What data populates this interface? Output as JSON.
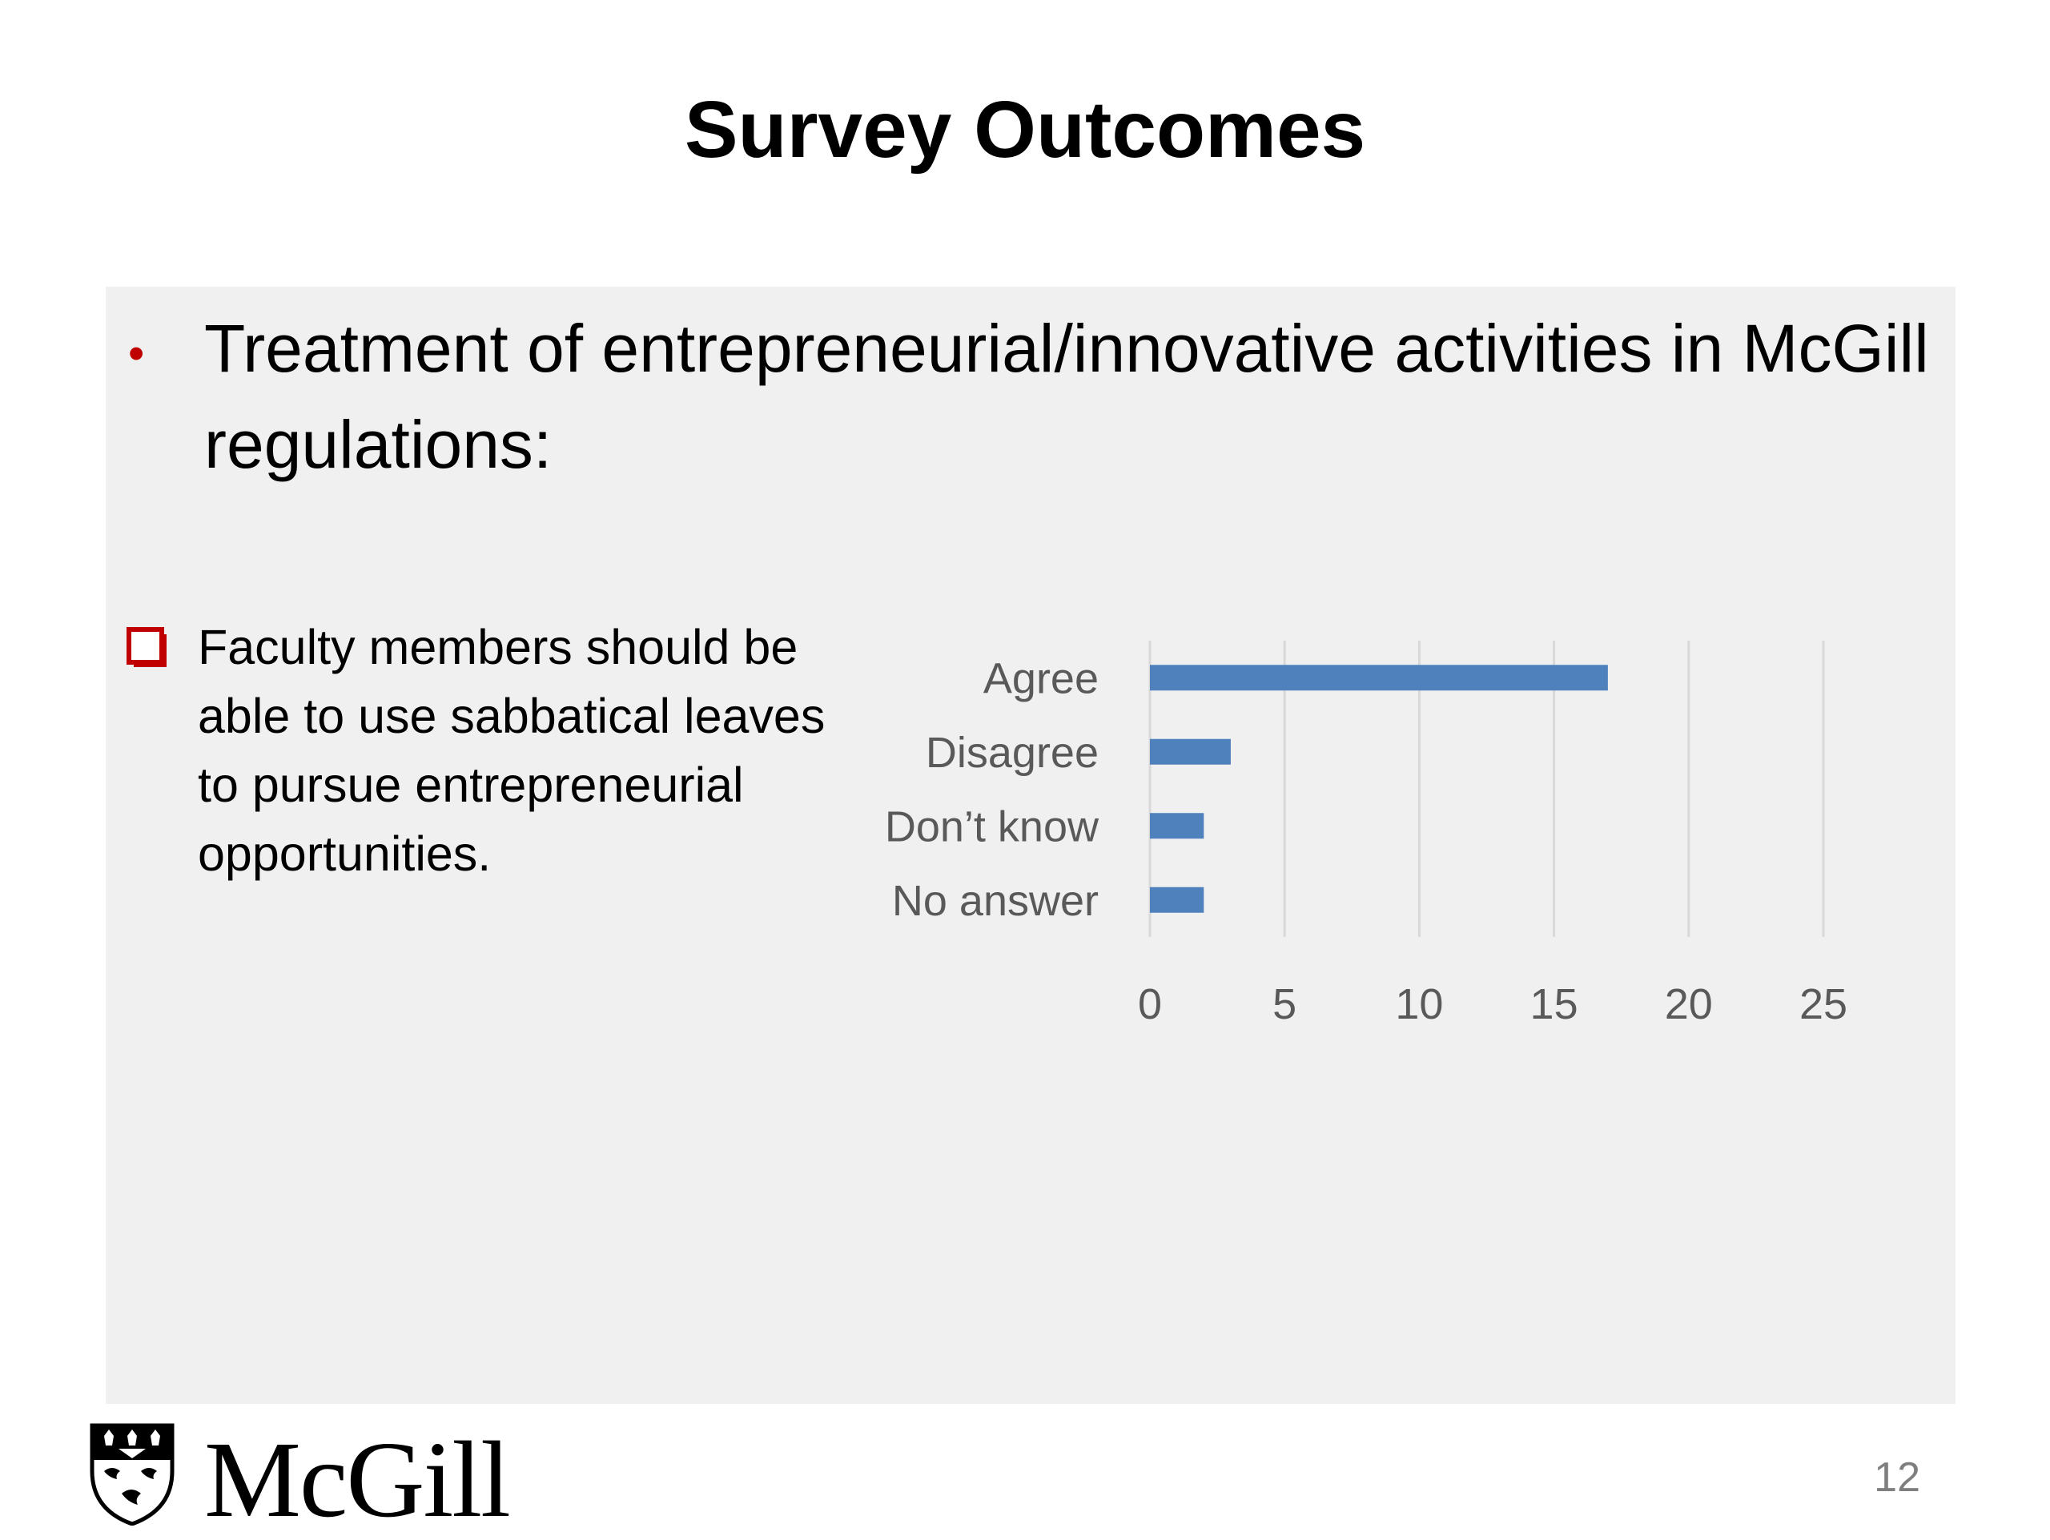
{
  "slide": {
    "title": "Survey Outcomes",
    "bullet_text": "Treatment of entrepreneurial/innovative activities in McGill regulations:",
    "sub_bullet_text": "Faculty members should be able to use sabbatical leaves to pursue entrepreneurial opportunities.",
    "page_number": "12",
    "logo_text": "McGill"
  },
  "colors": {
    "bar": "#4f81bd",
    "bullet": "#c00000",
    "gridline": "#d9d9d9",
    "panel": "#f0f0f0"
  },
  "icons": {
    "sub_bullet": "hollow-square-checkbox-icon",
    "logo": "mcgill-crest-icon"
  },
  "chart_data": {
    "type": "bar",
    "orientation": "horizontal",
    "categories": [
      "Agree",
      "Disagree",
      "Don’t know",
      "No answer"
    ],
    "values": [
      17,
      3,
      2,
      2
    ],
    "xlim": [
      0,
      25
    ],
    "x_ticks": [
      "0",
      "5",
      "10",
      "15",
      "20",
      "25"
    ],
    "grid": "vertical",
    "legend": "none"
  }
}
